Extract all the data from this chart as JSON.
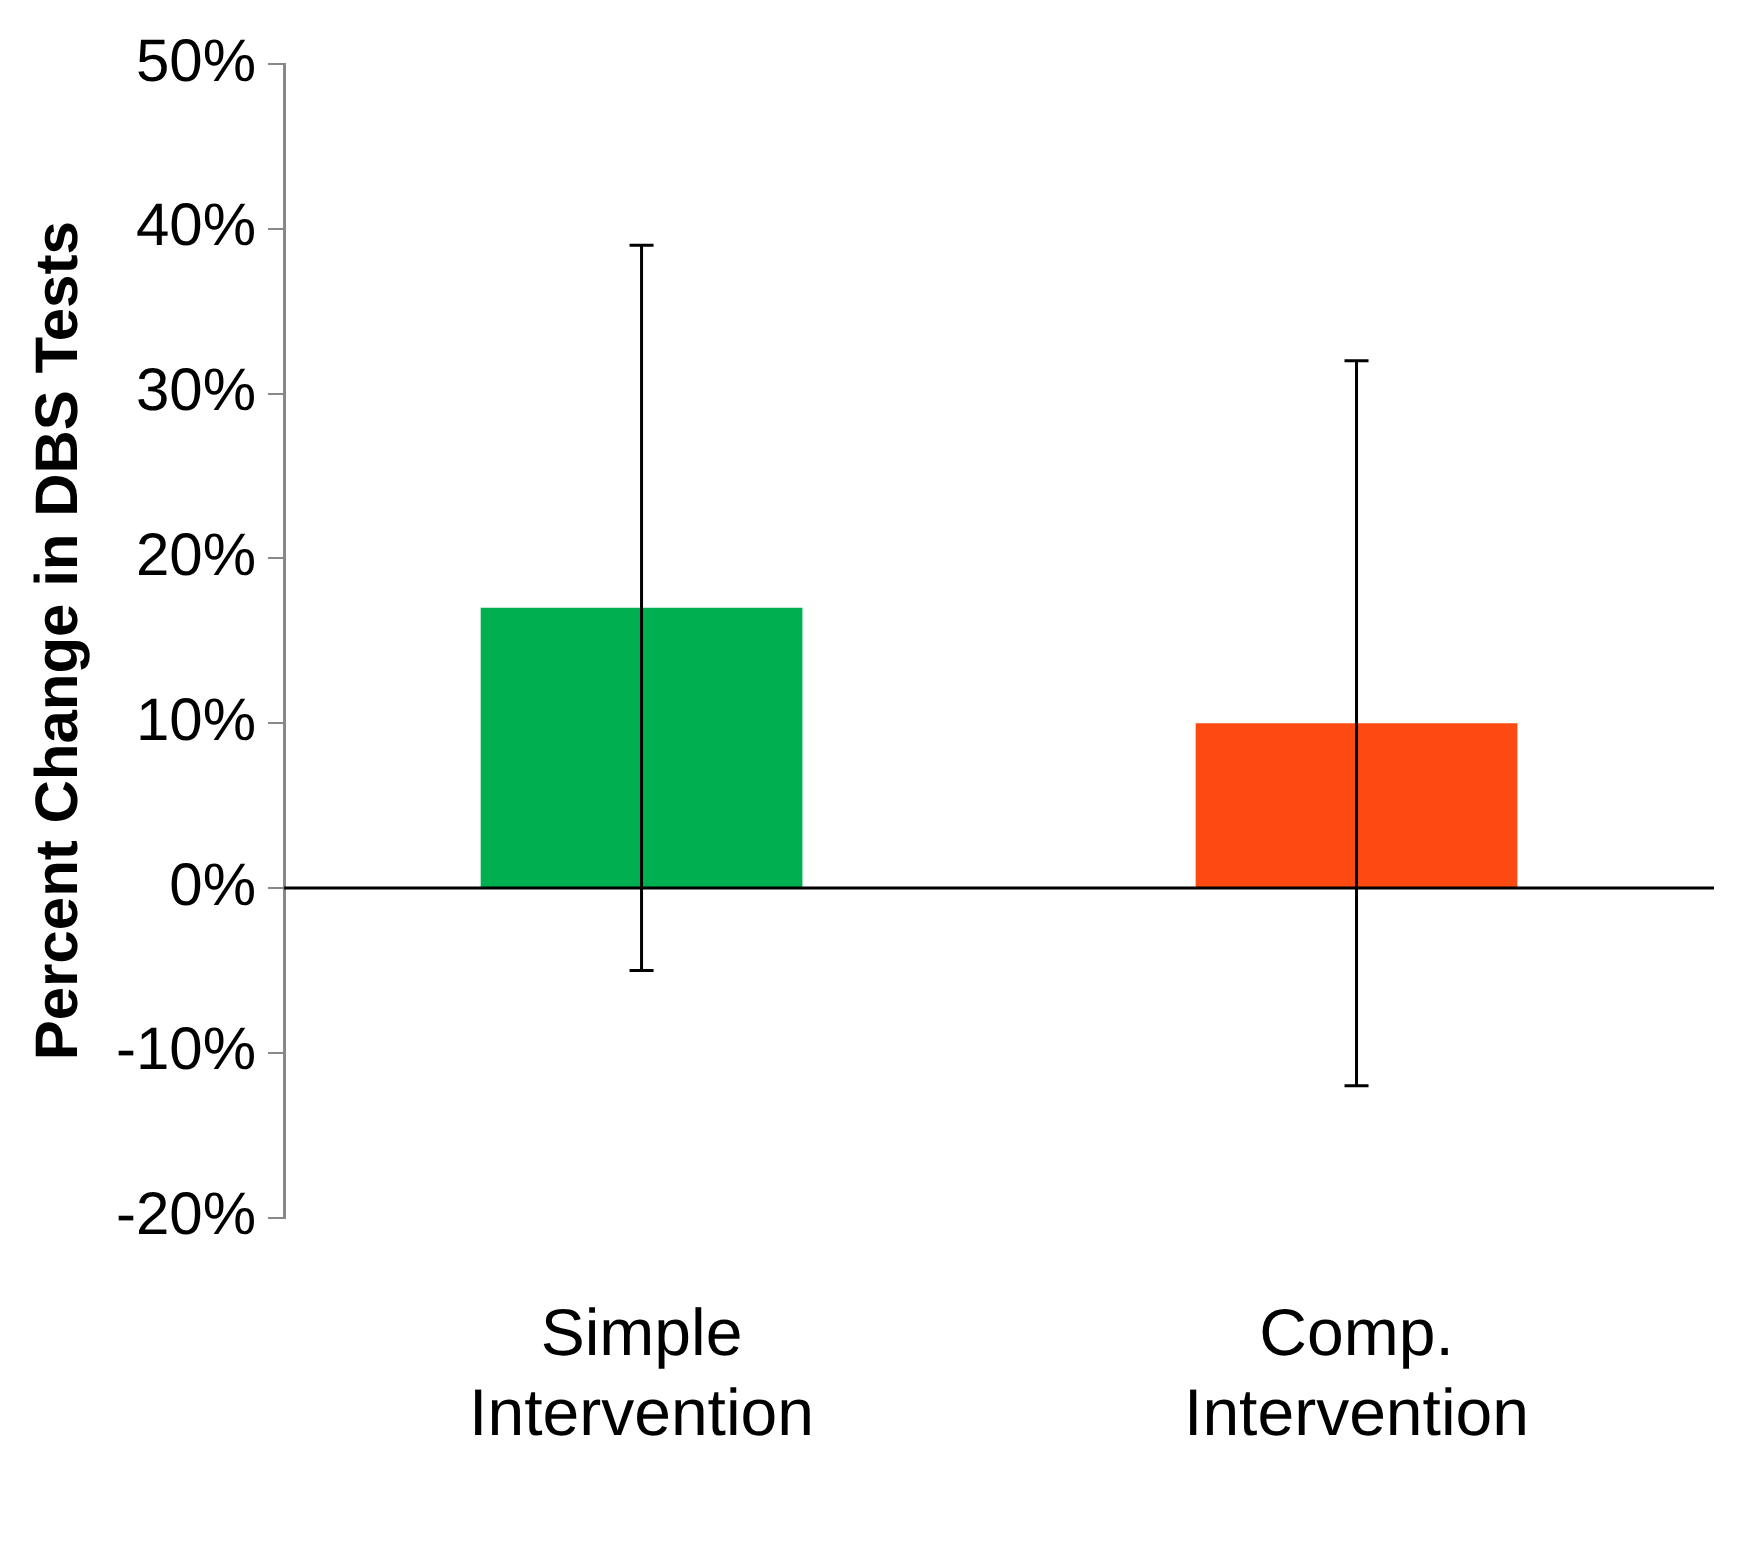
{
  "chart_data": {
    "type": "bar",
    "ylabel": "Percent Change in DBS Tests",
    "categories": [
      "Simple Intervention",
      "Comp. Intervention"
    ],
    "values": [
      17,
      10
    ],
    "colors": [
      "#00b050",
      "#fc4a12"
    ],
    "errors": [
      [
        -5,
        39
      ],
      [
        -12,
        32
      ]
    ],
    "ylim": [
      -20,
      50
    ],
    "yticks": [
      {
        "value": -20,
        "label": "-20%"
      },
      {
        "value": -10,
        "label": "-10%"
      },
      {
        "value": 0,
        "label": "0%"
      },
      {
        "value": 10,
        "label": "10%"
      },
      {
        "value": 20,
        "label": "20%"
      },
      {
        "value": 30,
        "label": "30%"
      },
      {
        "value": 40,
        "label": "40%"
      },
      {
        "value": 50,
        "label": "50%"
      }
    ],
    "legend": false
  }
}
